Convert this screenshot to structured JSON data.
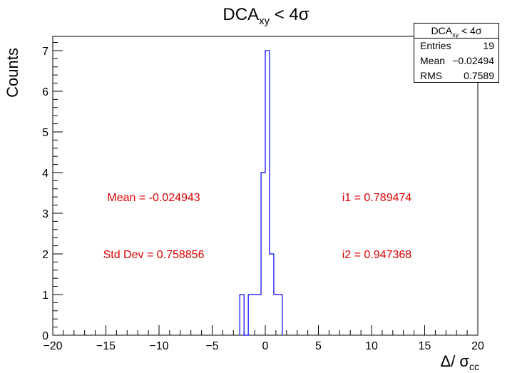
{
  "chart_data": {
    "type": "histogram",
    "title": {
      "main": "DCA",
      "sub": "xy",
      "rest": " < 4σ"
    },
    "xlabel": {
      "main": "Δ/ σ",
      "sub": "cc"
    },
    "ylabel": "Counts",
    "xlim": [
      -20,
      20
    ],
    "ylim": [
      0,
      7.35
    ],
    "x_ticks": [
      -20,
      -15,
      -10,
      -5,
      0,
      5,
      10,
      15,
      20
    ],
    "x_tick_labels": [
      "−20",
      "−15",
      "−10",
      "−5",
      "0",
      "5",
      "10",
      "15",
      "20"
    ],
    "y_ticks": [
      0,
      1,
      2,
      3,
      4,
      5,
      6,
      7
    ],
    "bin_width": 0.4,
    "bins": [
      {
        "x0": -2.4,
        "x1": -2.0,
        "count": 1
      },
      {
        "x0": -2.0,
        "x1": -1.6,
        "count": 0
      },
      {
        "x0": -1.6,
        "x1": -0.8,
        "count": 1
      },
      {
        "x0": -0.8,
        "x1": -0.4,
        "count": 1
      },
      {
        "x0": -0.4,
        "x1": 0.0,
        "count": 4
      },
      {
        "x0": 0.0,
        "x1": 0.4,
        "count": 7
      },
      {
        "x0": 0.4,
        "x1": 0.8,
        "count": 2
      },
      {
        "x0": 0.8,
        "x1": 1.6,
        "count": 1
      }
    ],
    "line_color": "#0000ff",
    "annotations": [
      {
        "text": "Mean = -0.024943",
        "x": -10.5,
        "y": 3.4
      },
      {
        "text": "Std Dev = 0.758856",
        "x": -10.5,
        "y": 2.0
      },
      {
        "text": "i1 = 0.789474",
        "x": 10.5,
        "y": 3.4
      },
      {
        "text": "i2 = 0.947368",
        "x": 10.5,
        "y": 2.0
      }
    ],
    "annotation_color": "#dd0000",
    "stats": {
      "title": "DCA",
      "title_sub": "xy",
      "title_rest": " < 4σ",
      "rows": [
        {
          "label": "Entries",
          "value": "19"
        },
        {
          "label": "Mean",
          "value": "−0.02494"
        },
        {
          "label": "RMS",
          "value": "0.7589"
        }
      ]
    }
  }
}
